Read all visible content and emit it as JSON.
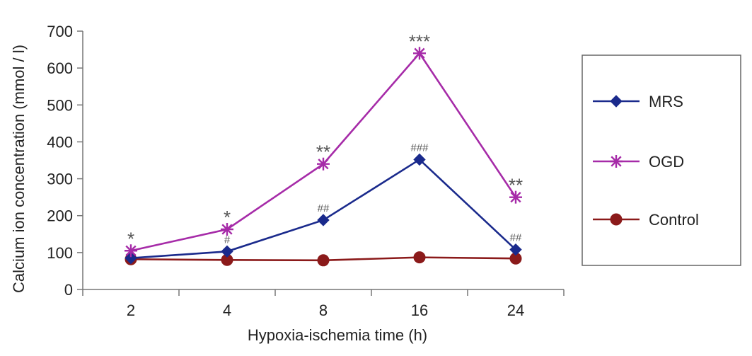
{
  "chart_data": {
    "type": "line",
    "categories": [
      "2",
      "4",
      "8",
      "16",
      "24"
    ],
    "xlabel": "Hypoxia-ischemia time (h)",
    "ylabel": "Calcium ion concentration (mmol / l)",
    "ylim": [
      0,
      700
    ],
    "yticks": [
      0,
      100,
      200,
      300,
      400,
      500,
      600,
      700
    ],
    "grid": false,
    "legend_position": "right",
    "series": [
      {
        "name": "MRS",
        "color": "#1a2a8c",
        "marker": "diamond",
        "values": [
          85,
          103,
          188,
          352,
          108
        ],
        "annotations": [
          "",
          "#",
          "##",
          "###",
          "##"
        ]
      },
      {
        "name": "OGD",
        "color": "#a62ba8",
        "marker": "asterisk",
        "values": [
          105,
          163,
          340,
          640,
          250
        ],
        "annotations": [
          "*",
          "*",
          "**",
          "***",
          "**"
        ]
      },
      {
        "name": "Control",
        "color": "#8b1a1a",
        "marker": "circle",
        "values": [
          82,
          80,
          79,
          87,
          84
        ],
        "annotations": [
          "",
          "",
          "",
          "",
          ""
        ]
      }
    ]
  }
}
